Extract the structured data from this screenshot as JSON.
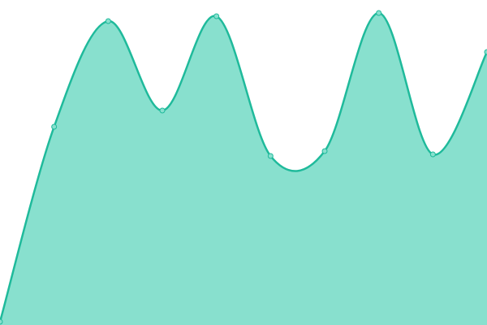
{
  "chart_data": {
    "type": "area",
    "values": [
      1,
      61,
      93.5,
      66,
      95,
      52,
      53.5,
      96,
      52.5,
      84
    ],
    "ylim": [
      0,
      100
    ],
    "color": "#1fba9b",
    "fill": "#88e0ce",
    "markers": true
  }
}
